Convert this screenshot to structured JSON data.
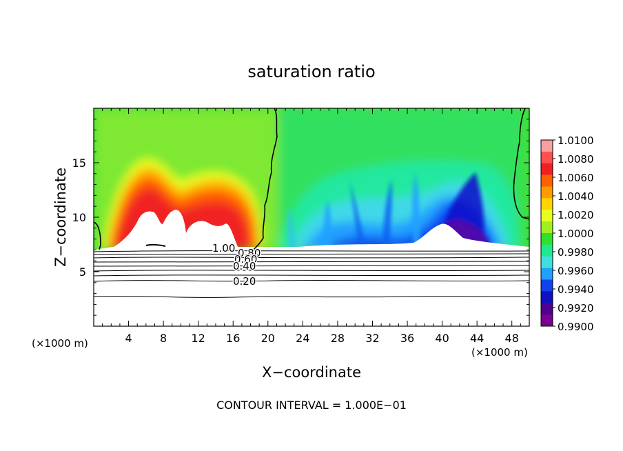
{
  "chart_data": {
    "type": "heatmap",
    "title": "saturation ratio",
    "xlabel": "X−coordinate",
    "ylabel": "Z−coordinate",
    "x_unit_left": "(×1000 m)",
    "x_unit_right": "(×1000 m)",
    "footer": "CONTOUR INTERVAL = 1.000E−01",
    "xlim": [
      0,
      50
    ],
    "ylim": [
      0,
      20
    ],
    "x_ticks": [
      "4",
      "8",
      "12",
      "16",
      "20",
      "24",
      "28",
      "32",
      "36",
      "40",
      "44",
      "48"
    ],
    "x_tick_values": [
      4,
      8,
      12,
      16,
      20,
      24,
      28,
      32,
      36,
      40,
      44,
      48
    ],
    "y_ticks": [
      "5",
      "10",
      "15"
    ],
    "y_tick_values": [
      5,
      10,
      15
    ],
    "colorbar": {
      "labels": [
        "1.0100",
        "1.0080",
        "1.0060",
        "1.0040",
        "1.0020",
        "1.0000",
        "0.9980",
        "0.9960",
        "0.9940",
        "0.9920",
        "0.9900"
      ],
      "values": [
        1.01,
        1.008,
        1.006,
        1.004,
        1.002,
        1.0,
        0.998,
        0.996,
        0.994,
        0.992,
        0.99
      ],
      "colors": [
        "#f7a0a0",
        "#ff5050",
        "#f02020",
        "#ff6000",
        "#ff9a00",
        "#ffd400",
        "#e6ff20",
        "#a0f020",
        "#30e030",
        "#20e890",
        "#40e0e0",
        "#20a0ff",
        "#1040f0",
        "#1010c0",
        "#500090",
        "#7a0090"
      ]
    },
    "contour_labels": [
      "1.00",
      "0.80",
      "0.60",
      "0.40",
      "0.20"
    ],
    "contour_levels": [
      1.0,
      0.8,
      0.6,
      0.4,
      0.2
    ]
  }
}
